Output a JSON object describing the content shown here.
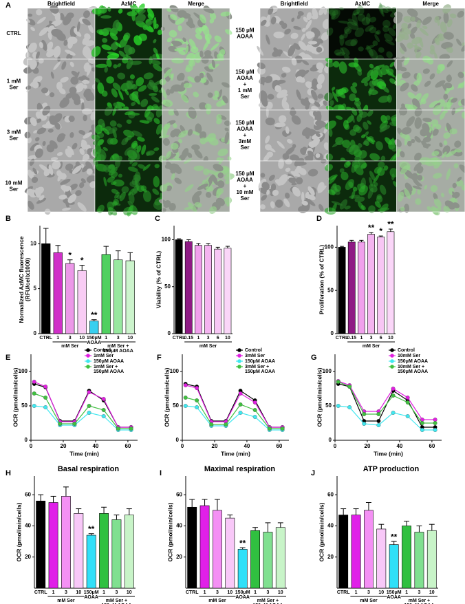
{
  "panel_a": {
    "panel": "A",
    "columns_left": [
      "Brightfield",
      "AzMC",
      "Merge"
    ],
    "columns_right": [
      "Brightfield",
      "AzMC",
      "Merge"
    ],
    "rows_left": [
      [
        "CTRL"
      ],
      [
        "1 mM",
        "Ser"
      ],
      [
        "3 mM",
        "Ser"
      ],
      [
        "10 mM",
        "Ser"
      ]
    ],
    "rows_right": [
      [
        "150 μM",
        "AOAA"
      ],
      [
        "150 μM",
        "AOAA",
        "+",
        "1 mM",
        "Ser"
      ],
      [
        "150 μM",
        "AOAA",
        "+",
        "3mM",
        "Ser"
      ],
      [
        "150 μM",
        "AOAA",
        "+",
        "10 mM",
        "Ser"
      ]
    ]
  },
  "chart_data": [
    {
      "type": "bar",
      "panel": "B",
      "ylabel": [
        "Normalized AzMC fluorescence",
        "(RFU/cellx1000)"
      ],
      "categories": [
        "CTRL",
        "1",
        "3",
        "10",
        [
          "150μM",
          "AOAA"
        ],
        "1",
        "3",
        "10"
      ],
      "group_labels": [
        [
          "mM Ser"
        ],
        [
          "mM Ser +",
          "150μM AOAA"
        ]
      ],
      "values": [
        10,
        9.0,
        7.8,
        7.0,
        1.4,
        8.8,
        8.2,
        8.1
      ],
      "errors": [
        1.7,
        0.8,
        0.4,
        0.6,
        0.15,
        0.9,
        1.0,
        0.9
      ],
      "stars": [
        null,
        null,
        "*",
        "*",
        "**",
        null,
        null,
        null
      ],
      "colors": [
        "#000000",
        "#d030c8",
        "#ec98e8",
        "#f8ccf4",
        "#38d0f0",
        "#50d060",
        "#98e8a0",
        "#ccf4cc"
      ],
      "ylim": [
        0,
        12
      ],
      "yticks": [
        0,
        5,
        10
      ]
    },
    {
      "type": "bar",
      "panel": "C",
      "ylabel": [
        "Viability (% of CTRL)"
      ],
      "categories": [
        "CTRL",
        "0.15",
        "1",
        "3",
        "6",
        "10"
      ],
      "group_labels": [
        [
          "mM Ser"
        ]
      ],
      "values": [
        100,
        98,
        94,
        94,
        90,
        91
      ],
      "errors": [
        1,
        2,
        2,
        2,
        2,
        2
      ],
      "stars": [
        null,
        null,
        null,
        null,
        null,
        null
      ],
      "colors": [
        "#000000",
        "#8e1a84",
        "#f0a0ec",
        "#f4b4f0",
        "#f7c6f4",
        "#fad6f8"
      ],
      "ylim": [
        0,
        115
      ],
      "yticks": [
        0,
        50,
        100
      ]
    },
    {
      "type": "bar",
      "panel": "D",
      "ylabel": [
        "Proliferation (% of CTRL)"
      ],
      "categories": [
        "CTRL",
        "0.15",
        "1",
        "3",
        "6",
        "10"
      ],
      "group_labels": [
        [
          "mM Ser"
        ]
      ],
      "values": [
        100,
        106,
        106,
        115,
        112,
        118
      ],
      "errors": [
        1,
        2,
        2,
        2,
        1,
        3
      ],
      "stars": [
        null,
        null,
        null,
        "**",
        "*",
        "**"
      ],
      "colors": [
        "#000000",
        "#8e1a84",
        "#f0a0ec",
        "#f4b4f0",
        "#f7c6f4",
        "#fad6f8"
      ],
      "ylim": [
        0,
        125
      ],
      "yticks": [
        0,
        50,
        100
      ]
    },
    {
      "type": "line",
      "panel": "E",
      "ylabel": [
        "OCR (pmol/min/cells)"
      ],
      "xlabel": "Time (min)",
      "x": [
        2,
        9,
        18,
        27,
        36,
        45,
        54,
        62
      ],
      "series": [
        {
          "name": [
            "Control"
          ],
          "color": "#000000",
          "values": [
            82,
            77,
            28,
            28,
            72,
            58,
            19,
            19
          ]
        },
        {
          "name": [
            "1mM Ser"
          ],
          "color": "#e020e0",
          "values": [
            85,
            78,
            27,
            27,
            70,
            60,
            19,
            19
          ]
        },
        {
          "name": [
            "150μM AOAA"
          ],
          "color": "#40e8f0",
          "values": [
            50,
            48,
            22,
            22,
            40,
            35,
            15,
            15
          ]
        },
        {
          "name": [
            "1mM Ser +",
            "150μM AOAA"
          ],
          "color": "#40c040",
          "values": [
            68,
            62,
            24,
            24,
            50,
            44,
            17,
            17
          ]
        }
      ],
      "xlim": [
        0,
        66
      ],
      "xticks": [
        0,
        20,
        40,
        60
      ],
      "ylim": [
        0,
        125
      ],
      "yticks": [
        0,
        50,
        100
      ]
    },
    {
      "type": "line",
      "panel": "F",
      "ylabel": [
        "OCR (pmol/min/cells)"
      ],
      "xlabel": "Time (min)",
      "x": [
        2,
        9,
        18,
        27,
        36,
        45,
        54,
        62
      ],
      "series": [
        {
          "name": [
            "Control"
          ],
          "color": "#000000",
          "values": [
            82,
            78,
            28,
            28,
            72,
            58,
            19,
            19
          ]
        },
        {
          "name": [
            "3mM Ser"
          ],
          "color": "#e020e0",
          "values": [
            80,
            76,
            27,
            27,
            68,
            55,
            19,
            19
          ]
        },
        {
          "name": [
            "150μM AOAA"
          ],
          "color": "#40e8f0",
          "values": [
            50,
            48,
            21,
            21,
            40,
            34,
            15,
            15
          ]
        },
        {
          "name": [
            "3mM Ser +",
            "150μM AOAA"
          ],
          "color": "#40c040",
          "values": [
            62,
            58,
            23,
            23,
            52,
            44,
            17,
            17
          ]
        }
      ],
      "xlim": [
        0,
        66
      ],
      "xticks": [
        0,
        20,
        40,
        60
      ],
      "ylim": [
        0,
        125
      ],
      "yticks": [
        0,
        50,
        100
      ]
    },
    {
      "type": "line",
      "panel": "G",
      "ylabel": [
        "OCR (pmol/min/cells)"
      ],
      "xlabel": "Time (min)",
      "x": [
        2,
        9,
        18,
        27,
        36,
        45,
        54,
        62
      ],
      "series": [
        {
          "name": [
            "Control"
          ],
          "color": "#000000",
          "values": [
            82,
            78,
            28,
            28,
            72,
            58,
            19,
            19
          ]
        },
        {
          "name": [
            "10mM Ser"
          ],
          "color": "#e020e0",
          "values": [
            86,
            80,
            42,
            42,
            75,
            62,
            30,
            30
          ]
        },
        {
          "name": [
            "150μM AOAA"
          ],
          "color": "#40e8f0",
          "values": [
            50,
            48,
            24,
            22,
            40,
            35,
            15,
            15
          ]
        },
        {
          "name": [
            "10mM Ser +",
            "150μM AOAA"
          ],
          "color": "#40c040",
          "values": [
            85,
            78,
            38,
            38,
            65,
            55,
            25,
            25
          ]
        }
      ],
      "xlim": [
        0,
        66
      ],
      "xticks": [
        0,
        20,
        40,
        60
      ],
      "ylim": [
        0,
        125
      ],
      "yticks": [
        0,
        50,
        100
      ]
    },
    {
      "type": "bar",
      "panel": "H",
      "title": "Basal respiration",
      "ylabel": [
        "OCR (pmol/min/cells)"
      ],
      "categories": [
        "CTRL",
        "1",
        "3",
        "10",
        [
          "150μM",
          "AOAA"
        ],
        "1",
        "3",
        "10"
      ],
      "group_labels": [
        [
          "mM Ser"
        ],
        [
          "mM Ser +",
          "150μM AOAA"
        ]
      ],
      "values": [
        56,
        55,
        59,
        48,
        34,
        48,
        44,
        47
      ],
      "errors": [
        4,
        4,
        6,
        3,
        1,
        4,
        3,
        4
      ],
      "stars": [
        null,
        null,
        null,
        null,
        "**",
        null,
        null,
        null
      ],
      "colors": [
        "#000000",
        "#e020e8",
        "#f490f4",
        "#f8c8f8",
        "#30e0f8",
        "#30c040",
        "#80e090",
        "#c8f4c8"
      ],
      "ylim": [
        0,
        72
      ],
      "yticks": [
        20,
        40,
        60
      ]
    },
    {
      "type": "bar",
      "panel": "I",
      "title": "Maximal respiration",
      "ylabel": [
        "OCR (pmol/min/cells)"
      ],
      "categories": [
        "CTRL",
        "1",
        "3",
        "10",
        [
          "150μM",
          "AOAA"
        ],
        "1",
        "3",
        "10"
      ],
      "group_labels": [
        [
          "mM Ser"
        ],
        [
          "mM Ser +",
          "150μM AOAA"
        ]
      ],
      "values": [
        52,
        53,
        50,
        45,
        25,
        37,
        36,
        39
      ],
      "errors": [
        5,
        4,
        7,
        2,
        1,
        2,
        6,
        3
      ],
      "stars": [
        null,
        null,
        null,
        null,
        "**",
        null,
        null,
        null
      ],
      "colors": [
        "#000000",
        "#e020e8",
        "#f490f4",
        "#f8c8f8",
        "#30e0f8",
        "#30c040",
        "#80e090",
        "#c8f4c8"
      ],
      "ylim": [
        0,
        72
      ],
      "yticks": [
        20,
        40,
        60
      ]
    },
    {
      "type": "bar",
      "panel": "J",
      "title": "ATP production",
      "ylabel": [
        "OCR (pmol/min/cells)"
      ],
      "categories": [
        "CTRL",
        "1",
        "3",
        "10",
        [
          "150μM",
          "AOAA"
        ],
        "1",
        "3",
        "10"
      ],
      "group_labels": [
        [
          "mM Ser"
        ],
        [
          "mM Ser +",
          "150μM AOAA"
        ]
      ],
      "values": [
        47,
        47,
        50,
        38,
        28,
        40,
        36,
        37
      ],
      "errors": [
        4,
        4,
        5,
        3,
        2,
        3,
        4,
        4
      ],
      "stars": [
        null,
        null,
        null,
        null,
        "**",
        null,
        null,
        null
      ],
      "colors": [
        "#000000",
        "#e020e8",
        "#f490f4",
        "#f8c8f8",
        "#30e0f8",
        "#30c040",
        "#80e090",
        "#c8f4c8"
      ],
      "ylim": [
        0,
        72
      ],
      "yticks": [
        20,
        40,
        60
      ]
    }
  ]
}
